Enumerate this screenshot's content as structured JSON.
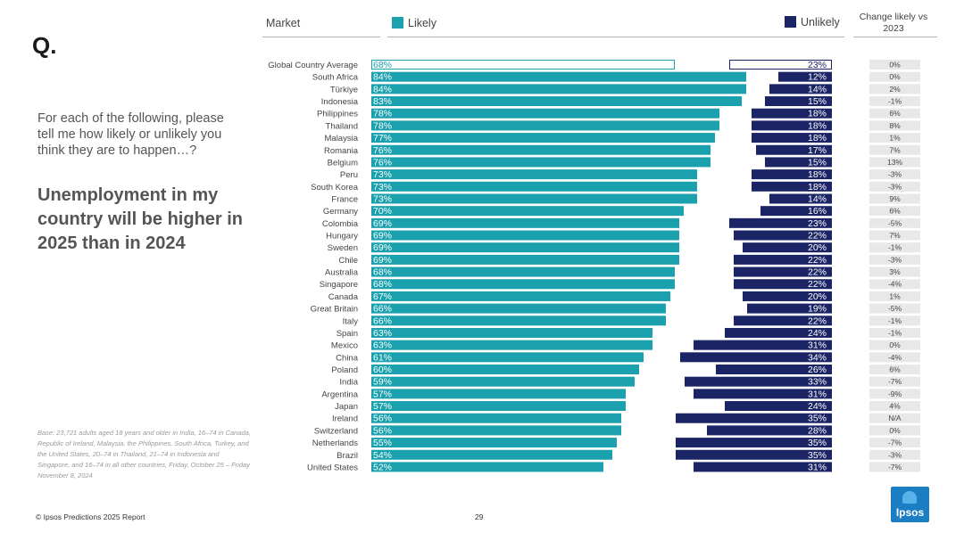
{
  "logo_text": "Q.",
  "question": "For each of the following, please tell me how likely or unlikely you think they are to happen…?",
  "statement": "Unemployment in my country will be higher in 2025 than in 2024",
  "base_note": "Base: 23,721 adults aged 18 years and older in India, 16–74 in Canada, Republic of Ireland, Malaysia, the Philippines, South Africa, Turkey, and the United States, 20–74 in Thailand, 21–74 in Indonesia and Singapore, and 16–74 in all other countries, Friday, October 25 – Friday November 8, 2024",
  "footer": "© Ipsos Predictions 2025 Report",
  "page_number": "29",
  "brand": "Ipsos",
  "headers": {
    "market": "Market",
    "likely": "Likely",
    "unlikely": "Unlikely",
    "change": "Change likely vs 2023"
  },
  "colors": {
    "likely": "#1aa1ad",
    "unlikely": "#1b2566",
    "change_bg": "#e8e8e8"
  },
  "chart_data": {
    "type": "bar",
    "title": "Unemployment in my country will be higher in 2025 than in 2024",
    "xlim": [
      0,
      100
    ],
    "series": [
      {
        "name": "Likely",
        "values": [
          68,
          84,
          84,
          83,
          78,
          78,
          77,
          76,
          76,
          73,
          73,
          73,
          70,
          69,
          69,
          69,
          69,
          68,
          68,
          67,
          66,
          66,
          63,
          63,
          61,
          60,
          59,
          57,
          57,
          56,
          56,
          55,
          54,
          52
        ]
      },
      {
        "name": "Unlikely",
        "values": [
          23,
          12,
          14,
          15,
          18,
          18,
          18,
          17,
          15,
          18,
          18,
          14,
          16,
          23,
          22,
          20,
          22,
          22,
          22,
          20,
          19,
          22,
          24,
          31,
          34,
          26,
          33,
          31,
          24,
          35,
          28,
          35,
          35,
          31
        ]
      }
    ],
    "categories": [
      "Global Country Average",
      "South Africa",
      "Türkiye",
      "Indonesia",
      "Philippines",
      "Thailand",
      "Malaysia",
      "Romania",
      "Belgium",
      "Peru",
      "South Korea",
      "France",
      "Germany",
      "Colombia",
      "Hungary",
      "Sweden",
      "Chile",
      "Australia",
      "Singapore",
      "Canada",
      "Great Britain",
      "Italy",
      "Spain",
      "Mexico",
      "China",
      "Poland",
      "India",
      "Argentina",
      "Japan",
      "Ireland",
      "Switzerland",
      "Netherlands",
      "Brazil",
      "United States"
    ],
    "change_vs_2023": [
      "0%",
      "0%",
      "2%",
      "-1%",
      "6%",
      "8%",
      "1%",
      "7%",
      "13%",
      "-3%",
      "-3%",
      "9%",
      "6%",
      "-5%",
      "7%",
      "-1%",
      "-3%",
      "3%",
      "-4%",
      "1%",
      "-5%",
      "-1%",
      "-1%",
      "0%",
      "-4%",
      "6%",
      "-7%",
      "-9%",
      "4%",
      "N/A",
      "0%",
      "-7%",
      "-3%",
      "-7%"
    ],
    "highlight_category": "Global Country Average"
  }
}
